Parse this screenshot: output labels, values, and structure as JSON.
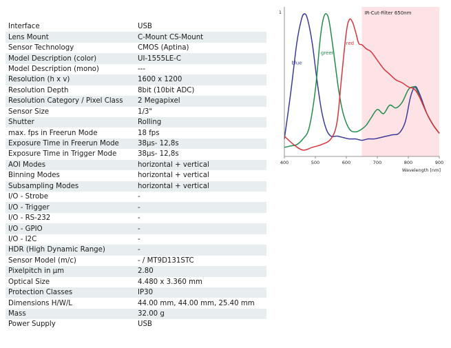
{
  "specs": [
    {
      "key": "Interface",
      "value": "USB"
    },
    {
      "key": "Lens Mount",
      "value": "C-Mount CS-Mount"
    },
    {
      "key": "Sensor Technology",
      "value": "CMOS (Aptina)"
    },
    {
      "key": "Model Description (color)",
      "value": "UI-1555LE-C"
    },
    {
      "key": "Model Description (mono)",
      "value": "---"
    },
    {
      "key": "Resolution (h x v)",
      "value": "1600 x 1200"
    },
    {
      "key": "Resolution Depth",
      "value": "8bit (10bit ADC)"
    },
    {
      "key": "Resolution Category / Pixel Class",
      "value": "2 Megapixel"
    },
    {
      "key": "Sensor Size",
      "value": "1/3\""
    },
    {
      "key": "Shutter",
      "value": "Rolling"
    },
    {
      "key": "max. fps in Freerun Mode",
      "value": "18 fps"
    },
    {
      "key": "Exposure Time in Freerun Mode",
      "value": "38µs- 12,8s"
    },
    {
      "key": "Exposure Time in Trigger Mode",
      "value": "38µs- 12,8s"
    },
    {
      "key": "AOI Modes",
      "value": "horizontal + vertical"
    },
    {
      "key": "Binning Modes",
      "value": "horizontal + vertical"
    },
    {
      "key": "Subsampling Modes",
      "value": "horizontal + vertical"
    },
    {
      "key": "I/O - Strobe",
      "value": "-"
    },
    {
      "key": "I/O - Trigger",
      "value": "-"
    },
    {
      "key": "I/O - RS-232",
      "value": "-"
    },
    {
      "key": "I/O - GPIO",
      "value": "-"
    },
    {
      "key": "I/O - I2C",
      "value": "-"
    },
    {
      "key": "HDR (High Dynamic Range)",
      "value": "-"
    },
    {
      "key": "Sensor Model (m/c)",
      "value": "- / MT9D131STC"
    },
    {
      "key": "Pixelpitch in µm",
      "value": "2.80"
    },
    {
      "key": "Optical Size",
      "value": "4.480 x 3.360 mm"
    },
    {
      "key": "Protection Classes",
      "value": "IP30"
    },
    {
      "key": "Dimensions H/W/L",
      "value": "44.00 mm, 44.00 mm, 25.40 mm"
    },
    {
      "key": "Mass",
      "value": "32.00 g"
    },
    {
      "key": "Power Supply",
      "value": "USB"
    }
  ],
  "chart_data": {
    "type": "line",
    "xlabel": "Wavelength [nm]",
    "xlim": [
      400,
      900
    ],
    "ylim": [
      0,
      1
    ],
    "x_ticks": [
      "400",
      "500",
      "600",
      "700",
      "800",
      "900"
    ],
    "y_ticks": [
      "1"
    ],
    "annotation": {
      "text": "IR-Cut-Filter 650nm",
      "x_start": 650,
      "x_end": 900,
      "color": "#fde3e5"
    },
    "series": [
      {
        "name": "blue",
        "color": "#3b3a9c",
        "x": [
          400,
          420,
          440,
          455,
          465,
          475,
          490,
          505,
          520,
          535,
          550,
          570,
          590,
          610,
          630,
          650,
          670,
          690,
          710,
          730,
          750,
          770,
          790,
          805,
          815,
          825,
          840,
          860,
          880,
          900
        ],
        "y": [
          0.1,
          0.42,
          0.78,
          0.95,
          0.99,
          0.95,
          0.78,
          0.52,
          0.3,
          0.17,
          0.12,
          0.12,
          0.11,
          0.1,
          0.1,
          0.09,
          0.1,
          0.1,
          0.11,
          0.12,
          0.13,
          0.14,
          0.22,
          0.38,
          0.45,
          0.47,
          0.4,
          0.28,
          0.2,
          0.14
        ]
      },
      {
        "name": "green",
        "color": "#1f8c4a",
        "x": [
          400,
          420,
          440,
          460,
          480,
          500,
          515,
          525,
          535,
          545,
          560,
          575,
          590,
          610,
          630,
          650,
          665,
          680,
          700,
          720,
          740,
          760,
          780,
          800,
          815,
          825,
          840,
          860,
          880,
          900
        ],
        "y": [
          0.04,
          0.05,
          0.06,
          0.1,
          0.18,
          0.45,
          0.8,
          0.95,
          0.99,
          0.93,
          0.7,
          0.45,
          0.28,
          0.17,
          0.15,
          0.17,
          0.2,
          0.25,
          0.31,
          0.28,
          0.34,
          0.32,
          0.36,
          0.45,
          0.47,
          0.46,
          0.38,
          0.28,
          0.2,
          0.14
        ]
      },
      {
        "name": "red",
        "color": "#d9323a",
        "x": [
          400,
          430,
          460,
          490,
          520,
          550,
          570,
          585,
          600,
          610,
          620,
          630,
          640,
          650,
          665,
          680,
          700,
          720,
          740,
          760,
          780,
          800,
          815,
          825,
          840,
          860,
          880,
          900
        ],
        "y": [
          0.12,
          0.06,
          0.02,
          0.04,
          0.06,
          0.1,
          0.22,
          0.55,
          0.86,
          0.95,
          0.93,
          0.86,
          0.78,
          0.77,
          0.74,
          0.72,
          0.66,
          0.6,
          0.56,
          0.52,
          0.5,
          0.47,
          0.46,
          0.44,
          0.38,
          0.28,
          0.2,
          0.14
        ]
      }
    ]
  }
}
